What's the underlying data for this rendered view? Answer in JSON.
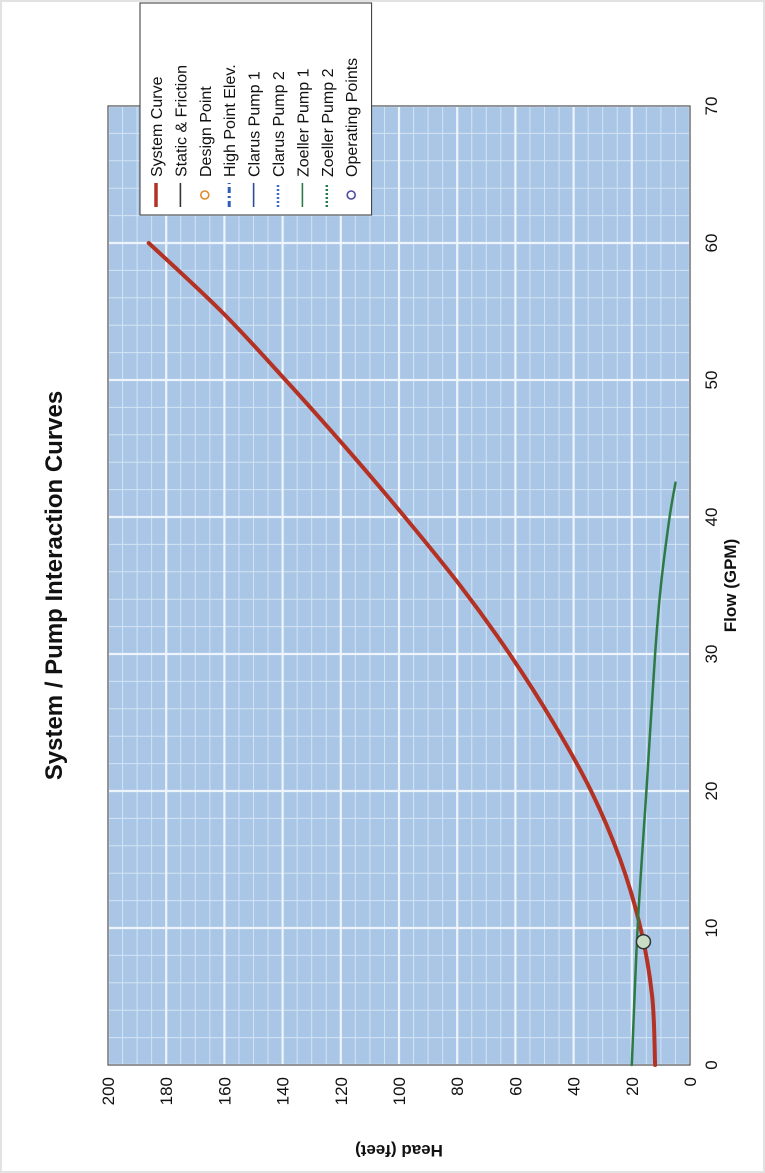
{
  "chart_data": {
    "type": "line",
    "title": "System / Pump Interaction Curves",
    "xlabel": "Flow (GPM)",
    "ylabel": "Head (feet)",
    "xlim": [
      0,
      70
    ],
    "ylim": [
      0,
      200
    ],
    "x_ticks": [
      "0",
      "10",
      "20",
      "30",
      "40",
      "50",
      "60",
      "70"
    ],
    "y_ticks": [
      "0",
      "20",
      "40",
      "60",
      "80",
      "100",
      "120",
      "140",
      "160",
      "180",
      "200"
    ],
    "orientation": "rotated 90 degrees counter-clockwise",
    "grid": true,
    "legend_position": "top-right",
    "colors": {
      "plot_background": "#a9c6e6",
      "grid_major": "#eef4fb",
      "grid_minor": "#d3e3f4",
      "system_curve": "#b43224",
      "static_friction": "#333333",
      "design_point": "#e08a2a",
      "high_point": "#2d5fb3",
      "clarus_pump_1": "#2a4d9a",
      "clarus_pump_2": "#3a6cc0",
      "zoeller_pump_1": "#2e7a45",
      "zoeller_pump_2": "#2c7a4c",
      "operating_point": "#c9dcc4"
    },
    "legend": [
      {
        "label": "System Curve",
        "marker": "line",
        "color": "#b43224"
      },
      {
        "label": "Static & Friction",
        "marker": "line",
        "color": "#333333"
      },
      {
        "label": "Design Point",
        "marker": "circle",
        "color": "#e08a2a"
      },
      {
        "label": "High Point Elev.",
        "marker": "dash-dot",
        "color": "#2d5fb3"
      },
      {
        "label": "Clarus Pump 1",
        "marker": "line",
        "color": "#2a4d9a"
      },
      {
        "label": "Clarus Pump 2",
        "marker": "dotted",
        "color": "#3a6cc0"
      },
      {
        "label": "Zoeller Pump 1",
        "marker": "line",
        "color": "#2e7a45"
      },
      {
        "label": "Zoeller Pump 2",
        "marker": "dotted",
        "color": "#2c7a4c"
      },
      {
        "label": "Operating Points",
        "marker": "circle",
        "color": "#4a4aa0"
      }
    ],
    "series": [
      {
        "name": "System Curve",
        "x": [
          0,
          5,
          10,
          15,
          20,
          25,
          30,
          35,
          40,
          45,
          50,
          55,
          60
        ],
        "y": [
          12,
          13,
          17,
          24,
          34,
          47,
          62,
          79,
          98,
          118,
          139,
          161,
          186
        ]
      },
      {
        "name": "Zoeller Pump 1",
        "x": [
          0,
          10,
          20,
          30,
          35,
          40,
          42.5
        ],
        "y": [
          20,
          18,
          15,
          12,
          10,
          7,
          5
        ]
      }
    ],
    "operating_points": [
      {
        "name": "Operating Points",
        "x": 9,
        "y": 16
      }
    ]
  }
}
